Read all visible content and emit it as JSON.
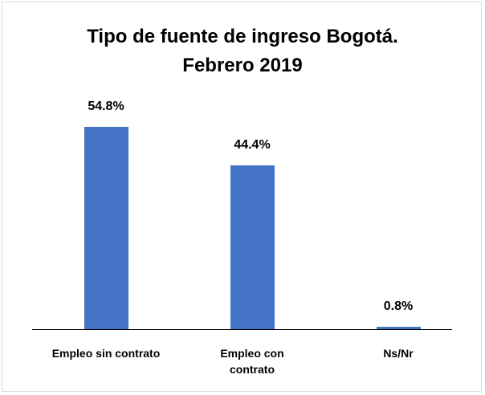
{
  "chart_data": {
    "type": "bar",
    "title": [
      "Tipo de fuente de ingreso Bogotá.",
      "Febrero 2019"
    ],
    "categories": [
      "Empleo sin contrato",
      "Empleo con contrato",
      "Ns/Nr"
    ],
    "values": [
      54.8,
      44.4,
      0.8
    ],
    "value_labels": [
      "54.8%",
      "44.4%",
      "0.8%"
    ],
    "color": "#4472c4"
  }
}
